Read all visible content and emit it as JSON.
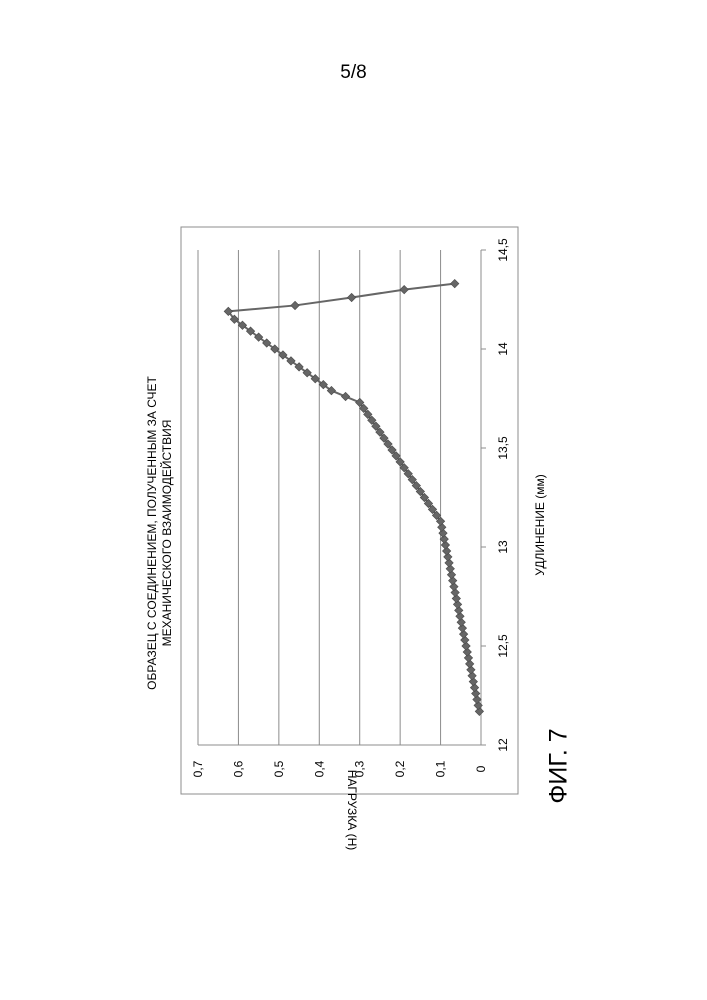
{
  "page_number": "5/8",
  "figure_label": "ФИГ. 7",
  "chart_data": {
    "type": "line",
    "title_lines": [
      "ОБРАЗЕЦ С СОЕДИНЕНИЕМ, ПОЛУЧЕННЫМ ЗА СЧЕТ",
      "МЕХАНИЧЕСКОГО ВЗАИМОДЕЙСТВИЯ"
    ],
    "xlabel": "УДЛИНЕНИЕ (мм)",
    "ylabel": "НАГРУЗКА (Н)",
    "xlim": [
      12,
      14.5
    ],
    "ylim": [
      0,
      0.7
    ],
    "x_ticks": [
      "12",
      "12,5",
      "13",
      "13,5",
      "14",
      "14,5"
    ],
    "y_ticks": [
      "0",
      "0,1",
      "0,2",
      "0,3",
      "0,4",
      "0,5",
      "0,6",
      "0,7"
    ],
    "grid": "horizontal",
    "legend": "none",
    "series_color": "#666666",
    "marker": "diamond",
    "x": [
      12.17,
      12.2,
      12.23,
      12.26,
      12.29,
      12.32,
      12.35,
      12.38,
      12.41,
      12.44,
      12.47,
      12.5,
      12.53,
      12.56,
      12.59,
      12.62,
      12.65,
      12.68,
      12.71,
      12.74,
      12.77,
      12.8,
      12.83,
      12.86,
      12.89,
      12.92,
      12.95,
      12.98,
      13.01,
      13.04,
      13.07,
      13.1,
      13.13,
      13.16,
      13.19,
      13.22,
      13.25,
      13.28,
      13.31,
      13.34,
      13.37,
      13.4,
      13.43,
      13.46,
      13.49,
      13.52,
      13.55,
      13.58,
      13.61,
      13.64,
      13.67,
      13.7,
      13.73,
      13.76,
      13.79,
      13.82,
      13.85,
      13.88,
      13.91,
      13.94,
      13.97,
      14.0,
      14.03,
      14.06,
      14.09,
      14.12,
      14.15,
      14.19,
      14.22,
      14.26,
      14.3,
      14.33
    ],
    "y": [
      0.004,
      0.007,
      0.01,
      0.013,
      0.016,
      0.019,
      0.022,
      0.025,
      0.028,
      0.031,
      0.034,
      0.037,
      0.04,
      0.043,
      0.046,
      0.049,
      0.052,
      0.055,
      0.058,
      0.061,
      0.064,
      0.067,
      0.07,
      0.073,
      0.076,
      0.079,
      0.082,
      0.085,
      0.088,
      0.091,
      0.094,
      0.097,
      0.1,
      0.11,
      0.12,
      0.13,
      0.14,
      0.15,
      0.16,
      0.17,
      0.18,
      0.19,
      0.2,
      0.21,
      0.22,
      0.23,
      0.24,
      0.25,
      0.26,
      0.27,
      0.28,
      0.29,
      0.3,
      0.335,
      0.37,
      0.39,
      0.41,
      0.43,
      0.45,
      0.47,
      0.49,
      0.51,
      0.53,
      0.55,
      0.57,
      0.59,
      0.61,
      0.625,
      0.46,
      0.32,
      0.19,
      0.065
    ]
  }
}
